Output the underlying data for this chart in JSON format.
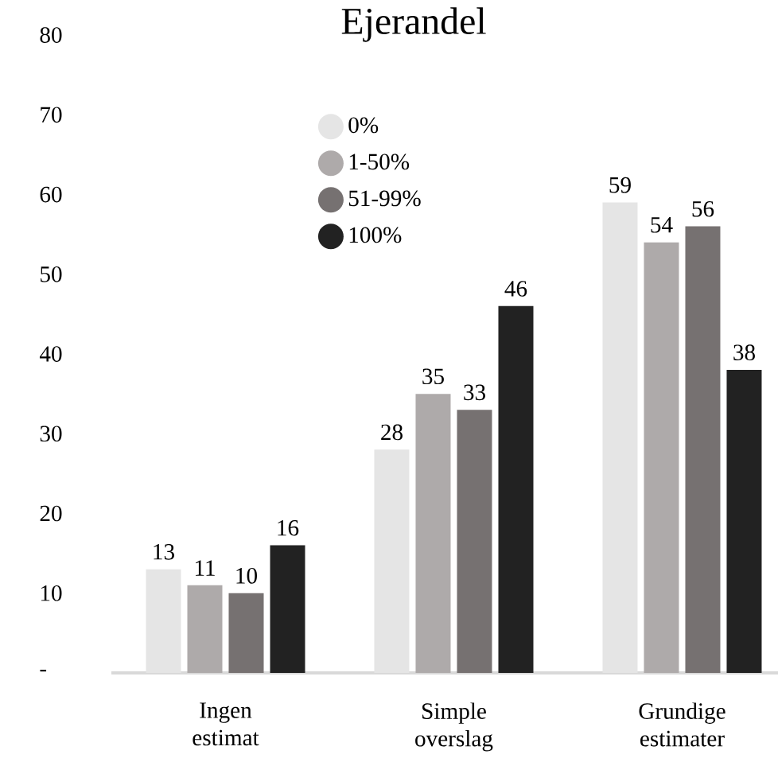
{
  "chart_data": {
    "type": "bar",
    "legend_title": "Ejerandel",
    "categories": [
      "Ingen estimat",
      "Simple overslag",
      "Grundige estimater"
    ],
    "series": [
      {
        "name": "0%",
        "color": "#e5e5e5",
        "values": [
          13,
          28,
          59
        ]
      },
      {
        "name": "1-50%",
        "color": "#aeaaaa",
        "values": [
          11,
          35,
          54
        ]
      },
      {
        "name": "51-99%",
        "color": "#767171",
        "values": [
          10,
          33,
          56
        ]
      },
      {
        "name": "100%",
        "color": "#222222",
        "values": [
          16,
          46,
          38
        ]
      }
    ],
    "ylim": [
      0,
      80
    ],
    "yticks": [
      {
        "value": 0,
        "label": "-"
      },
      10,
      20,
      30,
      40,
      50,
      60,
      70,
      80
    ],
    "data_labels": true,
    "legend": "top",
    "grid": false
  }
}
